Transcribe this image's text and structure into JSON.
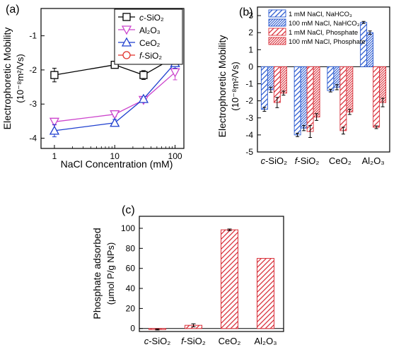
{
  "chart_data": [
    {
      "panel": "(a)",
      "type": "line",
      "xlabel": "NaCl Concentration (mM)",
      "ylabel": "Electrophoretic Mobility",
      "ylabel2": "(10⁻⁸m²/Vs)",
      "xscale": "log",
      "xlim": [
        0.6,
        140
      ],
      "ylim": [
        -4.3,
        -0.2
      ],
      "xticks": [
        1,
        10,
        100
      ],
      "xtick_labels": [
        "1",
        "10",
        "100"
      ],
      "yticks": [
        -4,
        -3,
        -2,
        -1
      ],
      "ytick_labels": [
        "-4",
        "-3",
        "-2",
        "-1"
      ],
      "legend_position": "top-right",
      "x": [
        1,
        10,
        30,
        100
      ],
      "series": [
        {
          "name": "c-SiO₂",
          "name_prefix": "c",
          "name_main": "-SiO₂",
          "marker": "square",
          "color": "#000000",
          "values": [
            -2.15,
            -1.85,
            -2.15,
            -1.62
          ],
          "errors": [
            0.2,
            0.06,
            0.13,
            0.12
          ]
        },
        {
          "name": "Al₂O₃",
          "name_prefix": "",
          "name_main": "Al₂O₃",
          "marker": "triangle-down",
          "color": "#cc44cc",
          "values": [
            -3.52,
            -3.3,
            -2.88,
            -2.07
          ],
          "errors": [
            0.09,
            0.07,
            0.07,
            0.22
          ]
        },
        {
          "name": "CeO₂",
          "name_prefix": "",
          "name_main": "CeO₂",
          "marker": "triangle-up",
          "color": "#1f3fcf",
          "values": [
            -3.78,
            -3.55,
            -2.85,
            -1.8
          ],
          "errors": [
            0.18,
            0.1,
            0.06,
            0.15
          ]
        },
        {
          "name": "f-SiO₂",
          "name_prefix": "f",
          "name_main": "-SiO₂",
          "marker": "circle",
          "color": "#e0302a",
          "values": [
            null,
            null,
            null,
            -1.62
          ],
          "errors": [
            null,
            null,
            null,
            0.1
          ]
        }
      ]
    },
    {
      "panel": "(b)",
      "type": "bar",
      "ylabel": "Electrophoretic Mobility",
      "ylabel2": "(10⁻⁸m²/Vs)",
      "ylim": [
        -5,
        3.5
      ],
      "yticks": [
        3,
        2,
        1,
        0,
        -1,
        -2,
        -3,
        -4,
        -5
      ],
      "ytick_labels": [
        "3",
        "2",
        "1",
        "0",
        "-1",
        "-2",
        "-3",
        "-4",
        "-5"
      ],
      "categories": [
        "c-SiO₂",
        "f-SiO₂",
        "CeO₂",
        "Al₂O₃"
      ],
      "cat_prefix": [
        "c",
        "f",
        "",
        ""
      ],
      "cat_main": [
        "-SiO₂",
        "-SiO₂",
        "CeO₂",
        "Al₂O₃"
      ],
      "legend_position": "top",
      "series": [
        {
          "name": "1 mM NaCl, NaHCO₃",
          "color": "#2a5ad0",
          "hatch": "wide",
          "values": [
            -2.5,
            -4.0,
            -1.4,
            2.6
          ],
          "errors": [
            0.12,
            0.1,
            0.08,
            0.06
          ]
        },
        {
          "name": "100 mM NaCl, NaHCO₃",
          "color": "#2a5ad0",
          "hatch": "dense",
          "values": [
            -1.35,
            -3.6,
            -1.2,
            2.0
          ],
          "errors": [
            0.15,
            0.15,
            0.15,
            0.1
          ]
        },
        {
          "name": "1 mM NaCl, Phosphate",
          "color": "#d9303a",
          "hatch": "wide",
          "values": [
            -2.1,
            -3.8,
            -3.75,
            -3.55
          ],
          "errors": [
            0.3,
            0.35,
            0.2,
            0.08
          ]
        },
        {
          "name": "100 mM NaCl, Phosphate",
          "color": "#d9303a",
          "hatch": "dense",
          "values": [
            -1.55,
            -2.95,
            -2.65,
            -2.1
          ],
          "errors": [
            0.12,
            0.2,
            0.15,
            0.25
          ]
        }
      ]
    },
    {
      "panel": "(c)",
      "type": "bar",
      "ylabel": "Phosphate adsorbed",
      "ylabel2": "(μmol P/g NPs)",
      "ylim": [
        -3,
        112
      ],
      "yticks": [
        0,
        20,
        40,
        60,
        80,
        100
      ],
      "ytick_labels": [
        "0",
        "20",
        "40",
        "60",
        "80",
        "100"
      ],
      "categories": [
        "c-SiO₂",
        "f-SiO₂",
        "CeO₂",
        "Al₂O₃"
      ],
      "cat_prefix": [
        "c",
        "f",
        "",
        ""
      ],
      "cat_main": [
        "-SiO₂",
        "-SiO₂",
        "CeO₂",
        "Al₂O₃"
      ],
      "color": "#d9303a",
      "values": [
        -1.0,
        3.2,
        98.5,
        70.0
      ],
      "errors": [
        0.5,
        1.5,
        0.8,
        0.0
      ]
    }
  ]
}
